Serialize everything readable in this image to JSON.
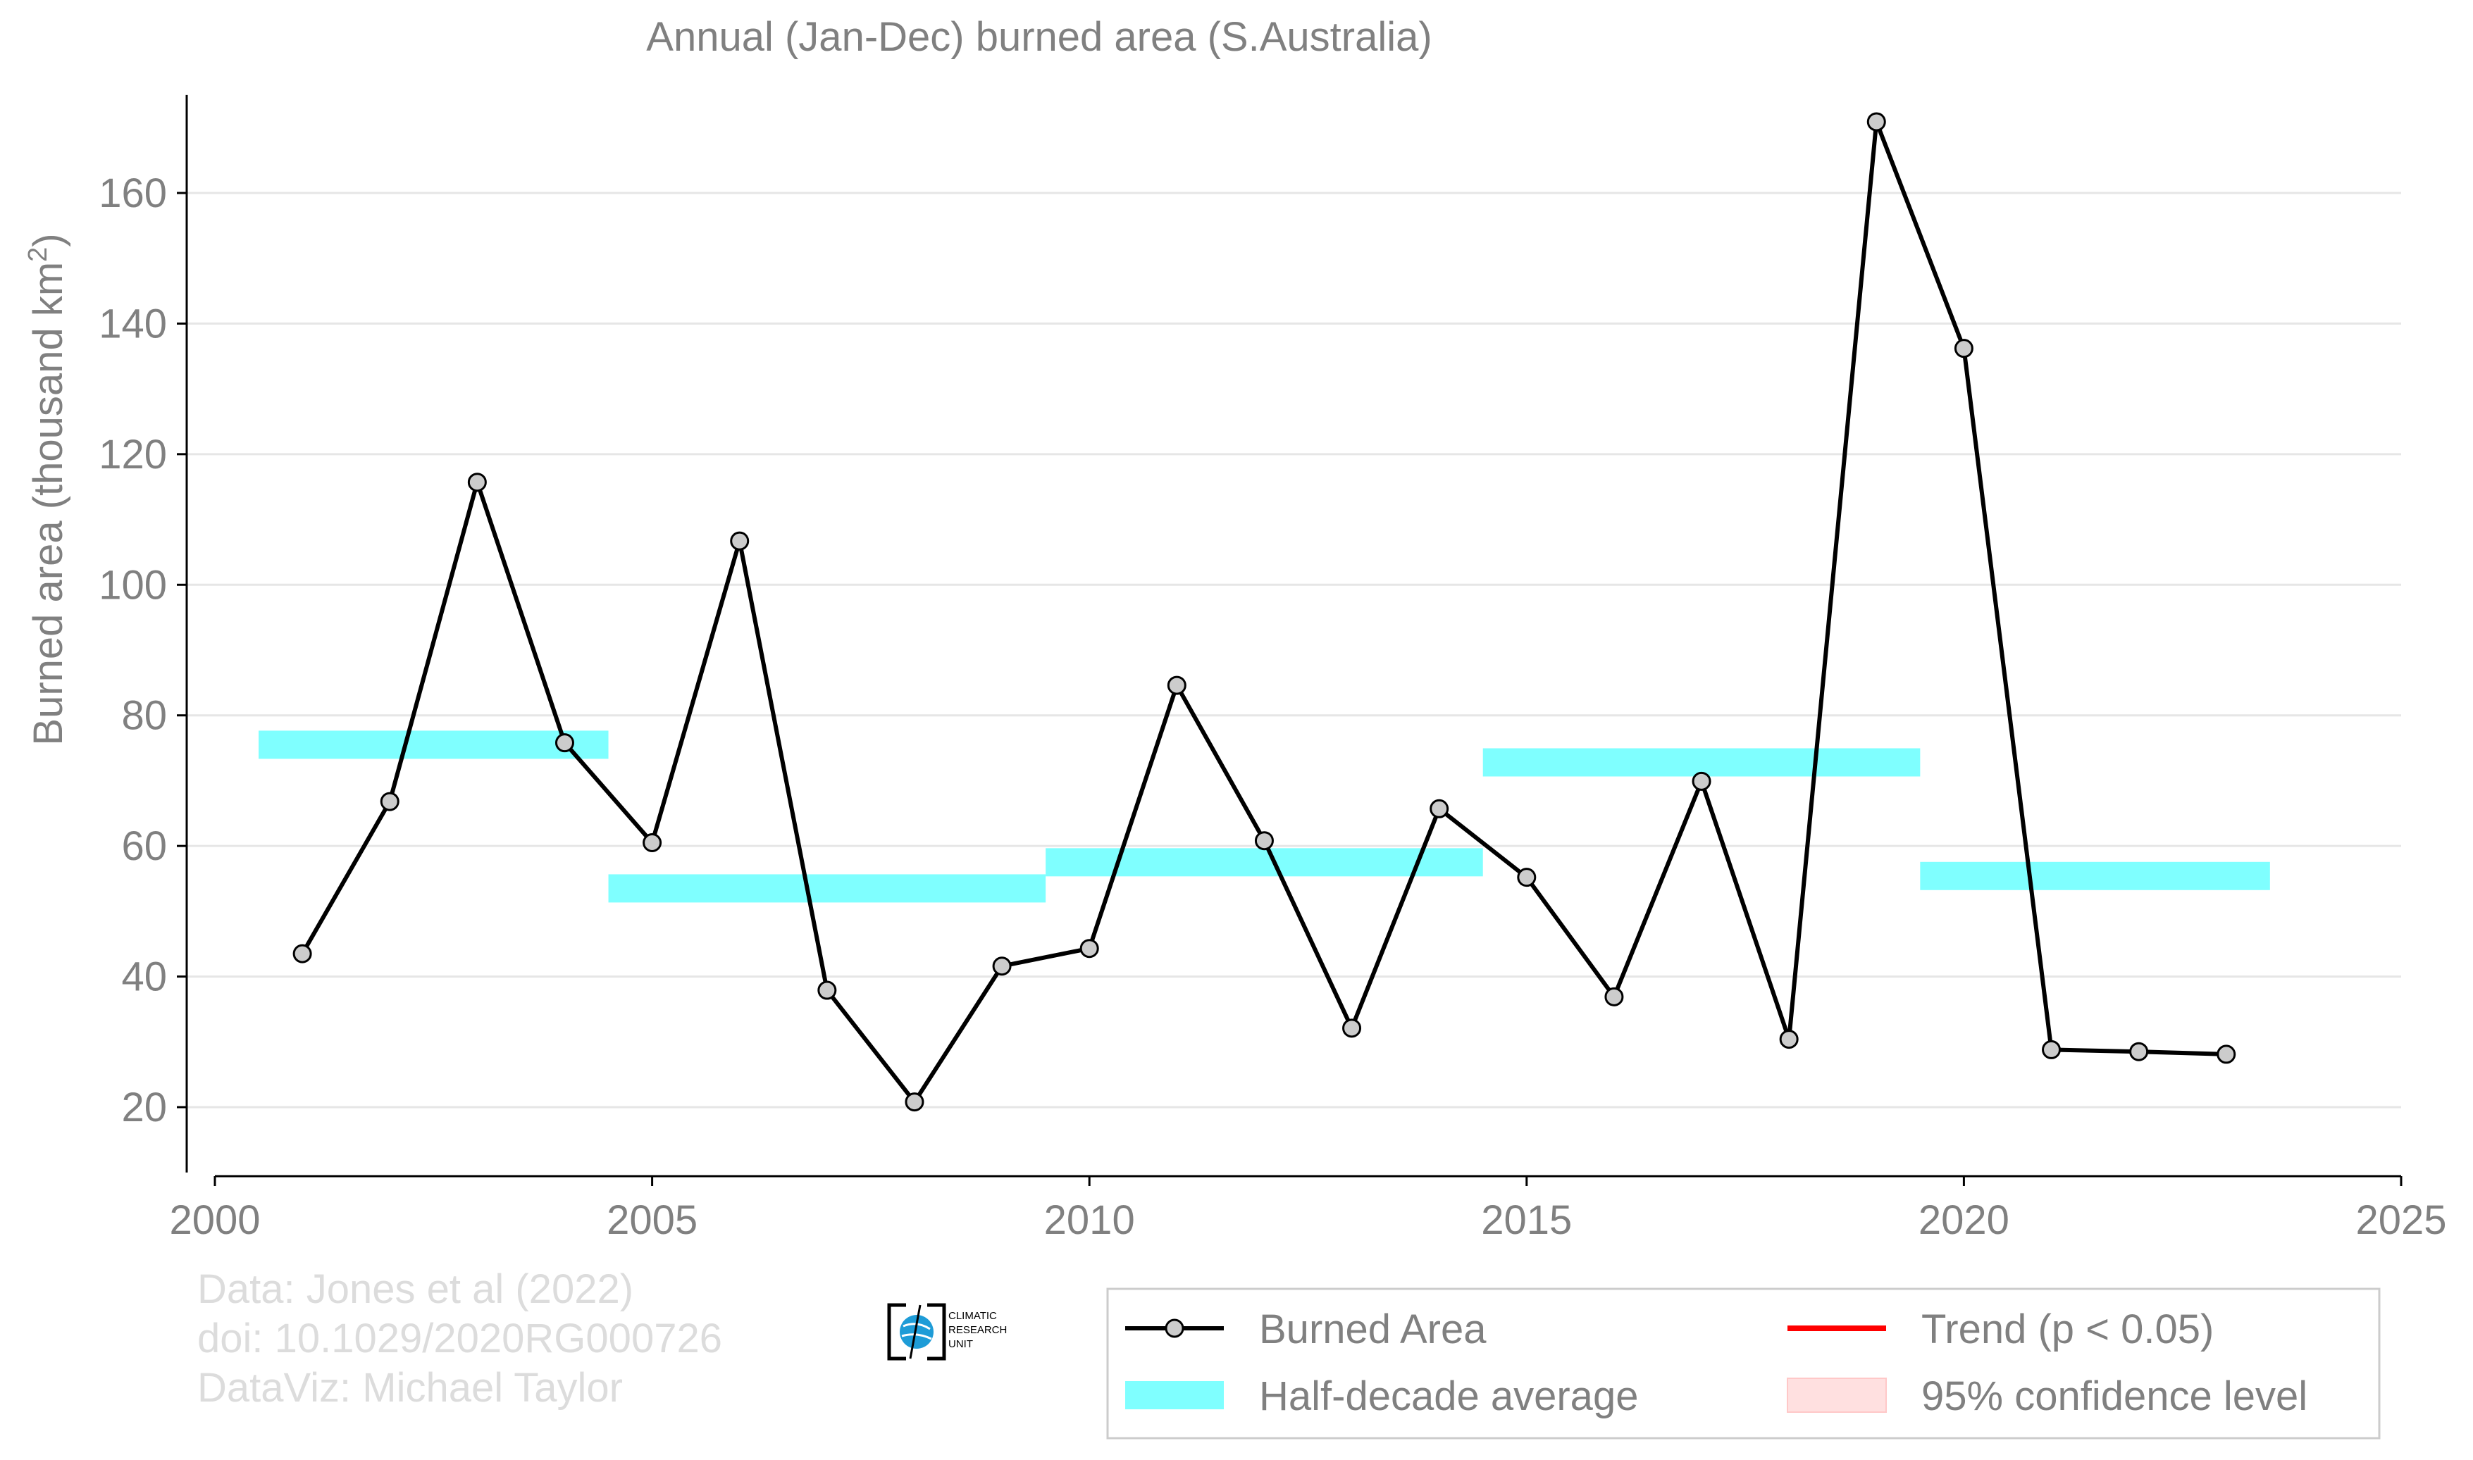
{
  "chart_data": {
    "type": "line",
    "title": "Annual (Jan-Dec) burned area (S.Australia)",
    "xlabel": "",
    "ylabel": "Burned area (thousand km",
    "ylabel_superscript": "2",
    "ylabel_suffix": ")",
    "xlim": [
      2000,
      2025
    ],
    "ylim": [
      10,
      175
    ],
    "x_ticks": [
      2000,
      2005,
      2010,
      2015,
      2020,
      2025
    ],
    "y_ticks": [
      20,
      40,
      60,
      80,
      100,
      120,
      140,
      160
    ],
    "grid": "horizontal",
    "legend_position": "bottom-right",
    "series": [
      {
        "name": "Burned Area",
        "color": "#000000",
        "marker_fill": "#cccccc",
        "x": [
          2001,
          2002,
          2003,
          2004,
          2005,
          2006,
          2007,
          2008,
          2009,
          2010,
          2011,
          2012,
          2013,
          2014,
          2015,
          2016,
          2017,
          2018,
          2019,
          2020,
          2021,
          2022,
          2023
        ],
        "y": [
          43.5,
          66.8,
          115.7,
          75.8,
          60.5,
          106.7,
          37.9,
          20.8,
          41.6,
          44.3,
          84.6,
          60.8,
          32.1,
          65.7,
          55.2,
          36.9,
          69.9,
          30.4,
          170.9,
          136.2,
          28.8,
          28.5,
          28.1
        ]
      }
    ],
    "half_decade_average": {
      "name": "Half-decade average",
      "color": "#7fffff",
      "segments": [
        {
          "x_start": 2000.5,
          "x_end": 2004.5,
          "y": 75.5
        },
        {
          "x_start": 2004.5,
          "x_end": 2009.5,
          "y": 53.5
        },
        {
          "x_start": 2009.5,
          "x_end": 2014.5,
          "y": 57.5
        },
        {
          "x_start": 2014.5,
          "x_end": 2019.5,
          "y": 72.8
        },
        {
          "x_start": 2019.5,
          "x_end": 2023.5,
          "y": 55.4
        }
      ]
    },
    "legend": [
      {
        "label": "Burned Area",
        "kind": "line-marker",
        "color": "#000000"
      },
      {
        "label": "Trend (p < 0.05)",
        "kind": "line",
        "color": "#ff0000"
      },
      {
        "label": "Half-decade average",
        "kind": "band",
        "color": "#7fffff"
      },
      {
        "label": "95% confidence level",
        "kind": "band",
        "color": "#ffe0e0"
      }
    ]
  },
  "credits": {
    "line1": "Data: Jones et al (2022)",
    "line2": "doi: 10.1029/2020RG000726",
    "line3": "DataViz: Michael Taylor"
  },
  "logo": {
    "line1": "CLIMATIC",
    "line2": "RESEARCH",
    "line3": "UNIT",
    "globe_color": "#1e9cd7"
  }
}
